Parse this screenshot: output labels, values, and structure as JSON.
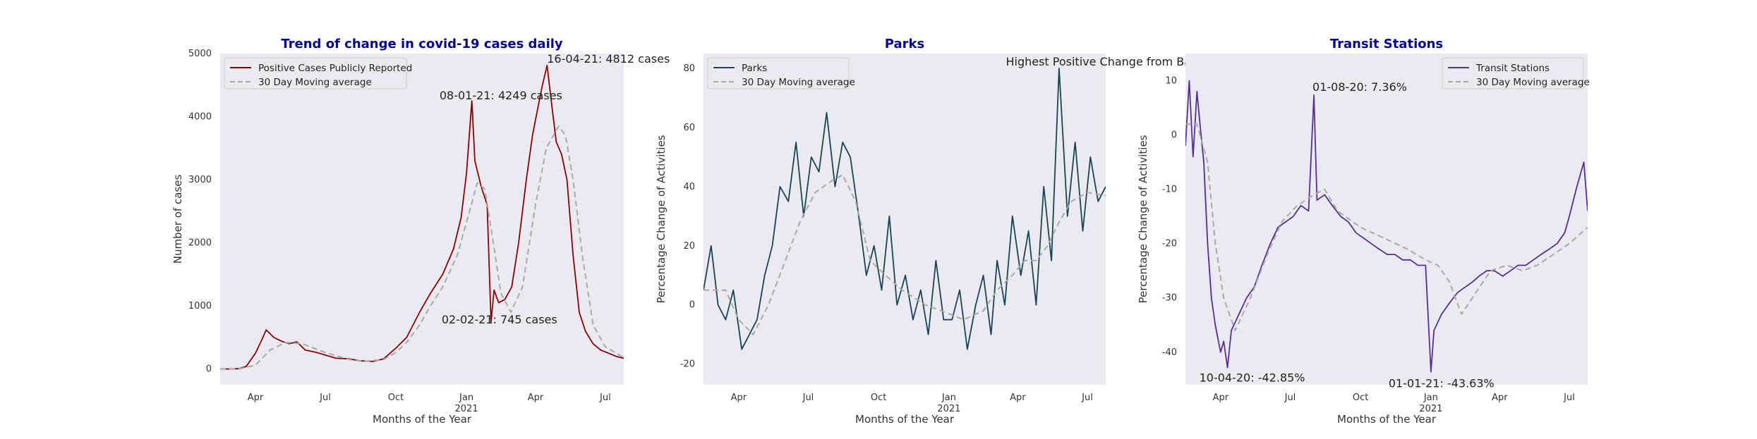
{
  "charts": [
    {
      "type": "line",
      "title": "Trend of change in covid-19 cases daily",
      "xlabel": "Months of the Year",
      "ylabel": "Number of cases",
      "xlim": [
        "2020-02-15",
        "2021-07-25"
      ],
      "ylim": [
        -250,
        5000
      ],
      "yticks": [
        0,
        1000,
        2000,
        3000,
        4000,
        5000
      ],
      "xticks": [
        {
          "date": "2020-04-01",
          "label": "Apr",
          "sub": ""
        },
        {
          "date": "2020-07-01",
          "label": "Jul",
          "sub": ""
        },
        {
          "date": "2020-10-01",
          "label": "Oct",
          "sub": ""
        },
        {
          "date": "2021-01-01",
          "label": "Jan",
          "sub": "2021"
        },
        {
          "date": "2021-04-01",
          "label": "Apr",
          "sub": ""
        },
        {
          "date": "2021-07-01",
          "label": "Jul",
          "sub": ""
        }
      ],
      "grid": false,
      "legend": "upper-left",
      "series": [
        {
          "name": "Positive Cases Publicly Reported",
          "color": "#8b0000",
          "style": "solid",
          "x": [
            "2020-02-15",
            "2020-03-01",
            "2020-03-10",
            "2020-03-20",
            "2020-04-01",
            "2020-04-10",
            "2020-04-15",
            "2020-04-25",
            "2020-05-05",
            "2020-05-15",
            "2020-05-25",
            "2020-06-05",
            "2020-06-20",
            "2020-07-01",
            "2020-07-15",
            "2020-08-01",
            "2020-08-15",
            "2020-09-01",
            "2020-09-15",
            "2020-10-01",
            "2020-10-15",
            "2020-11-01",
            "2020-11-15",
            "2020-12-01",
            "2020-12-15",
            "2020-12-25",
            "2021-01-01",
            "2021-01-08",
            "2021-01-12",
            "2021-01-20",
            "2021-01-28",
            "2021-02-02",
            "2021-02-06",
            "2021-02-12",
            "2021-02-20",
            "2021-03-01",
            "2021-03-10",
            "2021-03-20",
            "2021-03-28",
            "2021-04-05",
            "2021-04-10",
            "2021-04-16",
            "2021-04-22",
            "2021-04-28",
            "2021-05-05",
            "2021-05-12",
            "2021-05-20",
            "2021-05-28",
            "2021-06-05",
            "2021-06-15",
            "2021-06-25",
            "2021-07-05",
            "2021-07-15",
            "2021-07-25"
          ],
          "y": [
            0,
            0,
            5,
            40,
            250,
            480,
            620,
            500,
            440,
            400,
            430,
            300,
            260,
            220,
            170,
            160,
            130,
            120,
            160,
            330,
            500,
            900,
            1200,
            1500,
            1900,
            2400,
            3100,
            4249,
            3300,
            2900,
            2600,
            745,
            1250,
            1050,
            1100,
            1300,
            2000,
            3000,
            3700,
            4200,
            4500,
            4812,
            4200,
            3600,
            3400,
            3000,
            1800,
            900,
            600,
            400,
            300,
            250,
            200,
            170
          ]
        },
        {
          "name": "30 Day Moving average",
          "color": "#a9a9a9",
          "style": "dashed",
          "x": [
            "2020-02-15",
            "2020-03-10",
            "2020-04-01",
            "2020-04-20",
            "2020-05-10",
            "2020-06-01",
            "2020-07-01",
            "2020-08-01",
            "2020-08-20",
            "2020-09-15",
            "2020-10-01",
            "2020-10-15",
            "2020-11-01",
            "2020-11-15",
            "2020-12-01",
            "2020-12-20",
            "2021-01-05",
            "2021-01-15",
            "2021-01-25",
            "2021-02-05",
            "2021-02-15",
            "2021-02-28",
            "2021-03-15",
            "2021-04-01",
            "2021-04-15",
            "2021-05-01",
            "2021-05-10",
            "2021-05-20",
            "2021-06-01",
            "2021-06-15",
            "2021-07-01",
            "2021-07-25"
          ],
          "y": [
            0,
            0,
            60,
            300,
            420,
            400,
            260,
            150,
            120,
            150,
            260,
            420,
            700,
            1000,
            1300,
            1800,
            2500,
            2950,
            2850,
            2000,
            1200,
            900,
            1300,
            2600,
            3500,
            3850,
            3700,
            3000,
            1800,
            700,
            350,
            180
          ]
        }
      ],
      "annotations": [
        {
          "text": "08-01-21: 4249 cases",
          "date": "2021-01-10",
          "y": 4249,
          "dx": -48,
          "dy": -2
        },
        {
          "text": "16-04-21: 4812 cases",
          "date": "2021-04-16",
          "y": 4812,
          "dx": 0,
          "dy": -4
        },
        {
          "text": "02-02-21: 745 cases",
          "date": "2021-02-02",
          "y": 745,
          "dx": -70,
          "dy": 2
        }
      ]
    },
    {
      "type": "line",
      "title": "Parks",
      "xlabel": "Months of the Year",
      "ylabel": "Percentage Change of Activities",
      "xlim": [
        "2020-02-15",
        "2021-07-25"
      ],
      "ylim": [
        -27,
        85
      ],
      "yticks": [
        -20,
        0,
        20,
        40,
        60,
        80
      ],
      "xticks": [
        {
          "date": "2020-04-01",
          "label": "Apr",
          "sub": ""
        },
        {
          "date": "2020-07-01",
          "label": "Jul",
          "sub": ""
        },
        {
          "date": "2020-10-01",
          "label": "Oct",
          "sub": ""
        },
        {
          "date": "2021-01-01",
          "label": "Jan",
          "sub": "2021"
        },
        {
          "date": "2021-04-01",
          "label": "Apr",
          "sub": ""
        },
        {
          "date": "2021-07-01",
          "label": "Jul",
          "sub": ""
        }
      ],
      "grid": false,
      "legend": "upper-left",
      "series": [
        {
          "name": "Parks",
          "color": "#1b4354",
          "style": "solid",
          "x": [
            "2020-02-15",
            "2020-02-25",
            "2020-03-05",
            "2020-03-15",
            "2020-03-25",
            "2020-04-05",
            "2020-04-15",
            "2020-04-25",
            "2020-05-05",
            "2020-05-15",
            "2020-05-25",
            "2020-06-05",
            "2020-06-15",
            "2020-06-25",
            "2020-07-05",
            "2020-07-15",
            "2020-07-25",
            "2020-08-05",
            "2020-08-15",
            "2020-08-25",
            "2020-09-05",
            "2020-09-15",
            "2020-09-25",
            "2020-10-05",
            "2020-10-15",
            "2020-10-25",
            "2020-11-05",
            "2020-11-15",
            "2020-11-25",
            "2020-12-05",
            "2020-12-15",
            "2020-12-25",
            "2021-01-05",
            "2021-01-15",
            "2021-01-25",
            "2021-02-05",
            "2021-02-15",
            "2021-02-25",
            "2021-03-05",
            "2021-03-15",
            "2021-03-25",
            "2021-04-05",
            "2021-04-15",
            "2021-04-25",
            "2021-05-05",
            "2021-05-15",
            "2021-05-25",
            "2021-06-05",
            "2021-06-15",
            "2021-06-25",
            "2021-07-05",
            "2021-07-15",
            "2021-07-25"
          ],
          "y": [
            5,
            20,
            0,
            -5,
            5,
            -15,
            -10,
            -5,
            10,
            20,
            40,
            35,
            55,
            30,
            50,
            45,
            65,
            40,
            55,
            50,
            30,
            10,
            20,
            5,
            30,
            0,
            10,
            -5,
            5,
            -10,
            15,
            -5,
            -5,
            5,
            -15,
            0,
            10,
            -10,
            15,
            0,
            30,
            10,
            25,
            0,
            40,
            15,
            80,
            30,
            55,
            25,
            50,
            35,
            40
          ]
        },
        {
          "name": "30 Day Moving average",
          "color": "#a9a9a9",
          "style": "dashed",
          "x": [
            "2020-02-15",
            "2020-03-15",
            "2020-04-01",
            "2020-04-20",
            "2020-05-10",
            "2020-06-01",
            "2020-06-20",
            "2020-07-10",
            "2020-08-01",
            "2020-08-15",
            "2020-09-01",
            "2020-09-20",
            "2020-10-10",
            "2020-11-01",
            "2020-12-01",
            "2021-01-01",
            "2021-01-20",
            "2021-02-15",
            "2021-03-05",
            "2021-03-25",
            "2021-04-10",
            "2021-04-25",
            "2021-05-10",
            "2021-05-25",
            "2021-06-10",
            "2021-07-01",
            "2021-07-25"
          ],
          "y": [
            5,
            5,
            -5,
            -10,
            0,
            15,
            28,
            38,
            42,
            44,
            35,
            15,
            10,
            5,
            0,
            -3,
            -5,
            -2,
            5,
            10,
            15,
            15,
            20,
            28,
            35,
            38,
            37
          ]
        }
      ],
      "annotations": [
        {
          "text": "Highest Positive Change from Baseline",
          "date": "2021-05-20",
          "y": 80,
          "dx": -70,
          "dy": -4
        }
      ]
    },
    {
      "type": "line",
      "title": "Transit Stations",
      "xlabel": "Months of the Year",
      "ylabel": "Percentage Change of Activities",
      "xlim": [
        "2020-02-15",
        "2021-07-25"
      ],
      "ylim": [
        -46,
        15
      ],
      "yticks": [
        -40,
        -30,
        -20,
        -10,
        0,
        10
      ],
      "xticks": [
        {
          "date": "2020-04-01",
          "label": "Apr",
          "sub": ""
        },
        {
          "date": "2020-07-01",
          "label": "Jul",
          "sub": ""
        },
        {
          "date": "2020-10-01",
          "label": "Oct",
          "sub": ""
        },
        {
          "date": "2021-01-01",
          "label": "Jan",
          "sub": "2021"
        },
        {
          "date": "2021-04-01",
          "label": "Apr",
          "sub": ""
        },
        {
          "date": "2021-07-01",
          "label": "Jul",
          "sub": ""
        }
      ],
      "grid": false,
      "legend": "upper-right",
      "series": [
        {
          "name": "Transit Stations",
          "color": "#5a2d91",
          "style": "solid",
          "x": [
            "2020-02-15",
            "2020-02-20",
            "2020-02-25",
            "2020-03-01",
            "2020-03-05",
            "2020-03-10",
            "2020-03-15",
            "2020-03-20",
            "2020-03-25",
            "2020-04-01",
            "2020-04-05",
            "2020-04-10",
            "2020-04-15",
            "2020-04-25",
            "2020-05-05",
            "2020-05-15",
            "2020-05-25",
            "2020-06-05",
            "2020-06-15",
            "2020-06-25",
            "2020-07-05",
            "2020-07-15",
            "2020-07-25",
            "2020-08-01",
            "2020-08-05",
            "2020-08-15",
            "2020-08-25",
            "2020-09-05",
            "2020-09-15",
            "2020-09-25",
            "2020-10-05",
            "2020-10-15",
            "2020-10-25",
            "2020-11-05",
            "2020-11-15",
            "2020-11-25",
            "2020-12-05",
            "2020-12-15",
            "2020-12-25",
            "2021-01-01",
            "2021-01-05",
            "2021-01-15",
            "2021-01-25",
            "2021-02-05",
            "2021-02-15",
            "2021-02-25",
            "2021-03-05",
            "2021-03-15",
            "2021-03-25",
            "2021-04-05",
            "2021-04-15",
            "2021-04-25",
            "2021-05-05",
            "2021-05-15",
            "2021-05-25",
            "2021-06-05",
            "2021-06-15",
            "2021-06-25",
            "2021-07-01",
            "2021-07-10",
            "2021-07-20",
            "2021-07-25"
          ],
          "y": [
            -2,
            10,
            -4,
            8,
            2,
            -5,
            -20,
            -30,
            -35,
            -40,
            -38,
            -42.85,
            -36,
            -33,
            -30,
            -28,
            -24,
            -20,
            -17,
            -16,
            -15,
            -13,
            -14,
            7.36,
            -12,
            -11,
            -13,
            -15,
            -16,
            -18,
            -19,
            -20,
            -21,
            -22,
            -22,
            -23,
            -23,
            -24,
            -24,
            -43.63,
            -36,
            -33,
            -31,
            -29,
            -28,
            -27,
            -26,
            -25,
            -25,
            -26,
            -25,
            -24,
            -24,
            -23,
            -22,
            -21,
            -20,
            -18,
            -15,
            -10,
            -5,
            -14
          ]
        },
        {
          "name": "30 Day Moving average",
          "color": "#a9a9a9",
          "style": "dashed",
          "x": [
            "2020-02-15",
            "2020-03-01",
            "2020-03-15",
            "2020-03-25",
            "2020-04-05",
            "2020-04-20",
            "2020-05-10",
            "2020-06-01",
            "2020-06-20",
            "2020-07-10",
            "2020-08-01",
            "2020-08-15",
            "2020-09-01",
            "2020-10-01",
            "2020-11-01",
            "2020-12-01",
            "2020-12-25",
            "2021-01-10",
            "2021-01-25",
            "2021-02-10",
            "2021-03-01",
            "2021-03-20",
            "2021-04-10",
            "2021-05-01",
            "2021-05-20",
            "2021-06-10",
            "2021-07-01",
            "2021-07-25"
          ],
          "y": [
            2,
            2,
            -5,
            -20,
            -30,
            -36,
            -30,
            -22,
            -16,
            -13,
            -11,
            -10,
            -14,
            -17,
            -19,
            -21,
            -23,
            -24,
            -27,
            -33,
            -29,
            -25,
            -24,
            -25,
            -24,
            -22,
            -20,
            -17
          ]
        }
      ],
      "annotations": [
        {
          "text": "01-08-20: 7.36%",
          "date": "2020-08-01",
          "y": 7.36,
          "dx": -2,
          "dy": -6
        },
        {
          "text": "10-04-20: -42.85%",
          "date": "2020-04-10",
          "y": -42.85,
          "dx": -40,
          "dy": 20
        },
        {
          "text": "01-01-21: -43.63%",
          "date": "2021-01-01",
          "y": -43.63,
          "dx": -60,
          "dy": 22
        }
      ]
    }
  ]
}
